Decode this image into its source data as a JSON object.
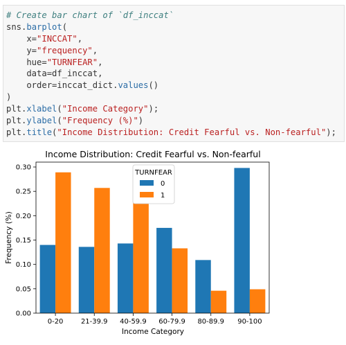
{
  "code_cell": {
    "lines": [
      [
        {
          "t": "# Create bar chart of `df_inccat`",
          "c": "comment"
        }
      ],
      [
        {
          "t": "sns.",
          "c": "plain"
        },
        {
          "t": "barplot",
          "c": "attr"
        },
        {
          "t": "(",
          "c": "plain"
        }
      ],
      [
        {
          "t": "    x=",
          "c": "plain"
        },
        {
          "t": "\"INCCAT\"",
          "c": "str"
        },
        {
          "t": ",",
          "c": "plain"
        }
      ],
      [
        {
          "t": "    y=",
          "c": "plain"
        },
        {
          "t": "\"frequency\"",
          "c": "str"
        },
        {
          "t": ",",
          "c": "plain"
        }
      ],
      [
        {
          "t": "    hue=",
          "c": "plain"
        },
        {
          "t": "\"TURNFEAR\"",
          "c": "str"
        },
        {
          "t": ",",
          "c": "plain"
        }
      ],
      [
        {
          "t": "    data=df_inccat,",
          "c": "plain"
        }
      ],
      [
        {
          "t": "    order=inccat_dict.",
          "c": "plain"
        },
        {
          "t": "values",
          "c": "attr"
        },
        {
          "t": "()",
          "c": "plain"
        }
      ],
      [
        {
          "t": ")",
          "c": "plain"
        }
      ],
      [
        {
          "t": "plt.",
          "c": "plain"
        },
        {
          "t": "xlabel",
          "c": "attr"
        },
        {
          "t": "(",
          "c": "plain"
        },
        {
          "t": "\"Income Category\"",
          "c": "str"
        },
        {
          "t": ");",
          "c": "plain"
        }
      ],
      [
        {
          "t": "plt.",
          "c": "plain"
        },
        {
          "t": "ylabel",
          "c": "attr"
        },
        {
          "t": "(",
          "c": "plain"
        },
        {
          "t": "\"Frequency (%)\"",
          "c": "str"
        },
        {
          "t": ")",
          "c": "plain"
        }
      ],
      [
        {
          "t": "plt.",
          "c": "plain"
        },
        {
          "t": "title",
          "c": "attr"
        },
        {
          "t": "(",
          "c": "plain"
        },
        {
          "t": "\"Income Distribution: Credit Fearful vs. Non-fearful\"",
          "c": "str"
        },
        {
          "t": ");",
          "c": "plain"
        }
      ]
    ]
  },
  "chart_data": {
    "type": "bar",
    "title": "Income Distribution: Credit Fearful vs. Non-fearful",
    "xlabel": "Income Category",
    "ylabel": "Frequency (%)",
    "categories": [
      "0-20",
      "21-39.9",
      "40-59.9",
      "60-79.9",
      "80-89.9",
      "90-100"
    ],
    "series": [
      {
        "name": "0",
        "color": "#1f77b4",
        "values": [
          0.14,
          0.136,
          0.143,
          0.175,
          0.109,
          0.298
        ]
      },
      {
        "name": "1",
        "color": "#ff7f0e",
        "values": [
          0.289,
          0.257,
          0.229,
          0.133,
          0.046,
          0.049
        ]
      }
    ],
    "ylim": [
      0,
      0.31
    ],
    "yticks": [
      "0.00",
      "0.05",
      "0.10",
      "0.15",
      "0.20",
      "0.25",
      "0.30"
    ],
    "legend": {
      "title": "TURNFEAR",
      "placement": "top-center"
    },
    "grid": false
  }
}
